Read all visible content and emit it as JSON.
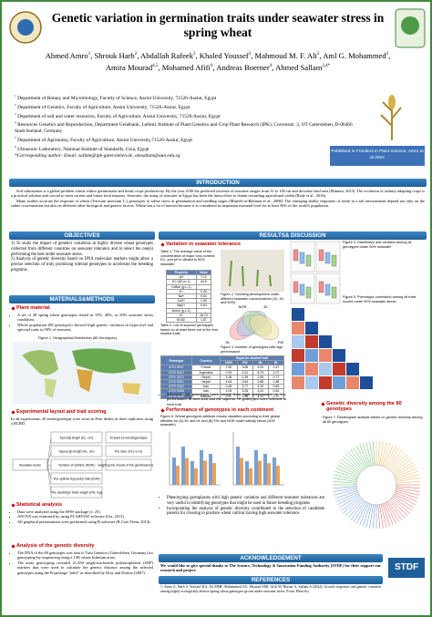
{
  "header": {
    "title": "Genetic variation in germination traits under seawater stress in spring wheat",
    "authors": [
      {
        "name": "Ahmed Amro",
        "sup": "1"
      },
      {
        "name": "Shrouk Harb",
        "sup": "2"
      },
      {
        "name": "Abdallah Rafeek",
        "sup": "2"
      },
      {
        "name": "Khaled Youssef",
        "sup": "3"
      },
      {
        "name": "Mahmoud M. F. Ali",
        "sup": "2"
      },
      {
        "name": "Aml G. Mohammed",
        "sup": "2"
      },
      {
        "name": "Amira Mourad",
        "sup": "4,5"
      },
      {
        "name": "Mohamed Afifi",
        "sup": "6"
      },
      {
        "name": "Andreas Boerner",
        "sup": "4"
      },
      {
        "name": "Ahmed Sallam",
        "sup": "2,4*"
      }
    ],
    "affiliations": [
      {
        "sup": "1",
        "text": "Department of Botany and Microbiology, Faculty of Science, Assiut University, 71526-Assiut, Egypt"
      },
      {
        "sup": "2",
        "text": "Department of Genetics, Faculty of Agriculture, Assiut University, 71526-Assiut, Egypt"
      },
      {
        "sup": "3",
        "text": "Department of soil and water resources, Faculty of Agriculture, Assiut University, 71526-Assiut, Egypt"
      },
      {
        "sup": "4",
        "text": "Resources Genetics and Reproduction, Department Genebank, Leibniz Institute of Plant Genetics and Crop Plant Research (IPK), Corrensstr. 3, OT Gatersleben, D-06466 Stadt Seeland, Germany"
      },
      {
        "sup": "5",
        "text": "Department of Agronomy, Faculty of Agriculture, Assiut University,71526-Assiut, Egypt"
      },
      {
        "sup": "6",
        "text": "Ultrasonic Laboratory, National Institute of Standards, Giza, Egypt"
      }
    ],
    "corresponding": "*Corresponding author: Email: sallam@ipk-gatersleben.de, amsallam@aun.edu.eg",
    "publication": "Published in Frontiers in Plant Science, Amro et al 2022"
  },
  "introduction": {
    "heading": "INTRODUCTION",
    "paragraphs": [
      "Soil salinization is a global problem which reduce germination and limits crops productivity. By the year 2100 the predicted increase of seawater ranges from 31 to 100 cm and decrease land area (Mimura, 2013). The evolution of salinity-adapting crops is a practical solution and crucial to meet current and future food requests. Seawater, the using of seawater in Egypt has been the latest effort to obtain rewarding agricultural yields (Rady et al., 2016).",
      "Many studies accurate the response of wheat (Triticum aestivum L.) genotypes to saline stress at germination and seedling stages (Mujeeb-ur-Rahman et al., 2008). The emerging ability responses of seeds in a salt environment depend not only on the saline concentration but also on different other biological and genetic factors. Wheat has a lot of interest because it is considered an important essential food for at least 36% of the world's population."
    ]
  },
  "objectives": {
    "heading": "OBJECTIVES",
    "items": [
      "1) To study the impact of genetics variations in highly diverse wheat genotypes collected from different countries on seawater tolerance and to select the one(s) performing the best under seawater stress.",
      "2) Analysis of genetic diversity based on DNA molecular markers might allow a precise selection of truly promising tolerant genotypes to accelerate the breeding programs."
    ]
  },
  "methods": {
    "heading": "MATERIALS&METHODS",
    "plant_material": {
      "heading": "Plant material",
      "items": [
        "A set of 48 spring wheat genotypes tested in 10%, 40%, or 50% seawater stress conditions.",
        "Whole population (80 genotypes) showed high genetic variation in hypocotyl and epicotyl traits in 50% of seawater."
      ],
      "figure_caption": "Figure 1. Geographical Distribution (80 Genotypes)"
    },
    "layout": {
      "heading": "Experimental layout and trait scoring",
      "text": "In all experiments, 20 seeds/genotype were sown in Petri dishes in three replicates using a RCBD.",
      "diagram": [
        "Seawater levels",
        "Epicotyl length (EL, cm)",
        "Hypocotyl length (HL, cm)",
        "Number of radicles (NOR)",
        "The optimal Hypocotyl ratio (EHR)",
        "The seedling's fresh weight (FW, mg)",
        "At least 16 seeds/genotype",
        "The ratio of EL to HL",
        "weighing the shoots of the germinated seeds"
      ]
    },
    "statistics": {
      "heading": "Statistical analysis",
      "items": [
        "Data were analyzed using the SPSS package (v. 25).",
        "ANOVA was estimated by using PLABSTAT software (Utz, 2011).",
        "All graphical presentations were performed using R software (R Core Team, 2014)."
      ]
    },
    "diversity": {
      "heading": "Analysis of the genetic diversity",
      "items": [
        "The DNA of the 80 genotypes was sent to Trait Genetics (Gatersleben, Germany) for genotyping-by-sequencing using a 15K wheat Infinium array.",
        "The array genotyping revealed 21,450 single-nucleotide polymorphisms (SNP) markers that were used to calculate the genetic distance among the selected genotypes using the R-package \"ade4\" as described by Dray and Dufour (2007)."
      ]
    }
  },
  "results": {
    "heading": "RESULTS& DISCUSSION",
    "variation_heading": "Variation in seawater tolerance",
    "table1": {
      "caption": "Table 1. The average value of the concentration of major ions content, EC, and pH in diluted to 50% seawater",
      "columns": [
        "Property",
        "Value"
      ],
      "rows": [
        [
          "pH",
          "7.12"
        ],
        [
          "EC (dS.m-1)",
          "44.5"
        ],
        [
          "Cation (g.L-1)",
          ""
        ],
        [
          "K+",
          "0.26"
        ],
        [
          "Na+",
          "9.04"
        ],
        [
          "Ca2+",
          "1.59"
        ],
        [
          "Mg2+",
          "0.54"
        ],
        [
          "Anion (g.L-1)",
          ""
        ],
        [
          "Cl-",
          "18.73"
        ],
        [
          "SO42-",
          "1.67"
        ]
      ]
    },
    "figure2_caption": "Figure 2. Seedling development under different seawater concentrations (10, 40, and 50%)",
    "figure3_caption": "Figure 3. Distribution and variation among all genotypes under 50% seawater",
    "figure4_caption": "Figure 4. Number of genotypes with high performance",
    "venn_labels": [
      "HL",
      "NOR",
      "EL",
      "FW"
    ],
    "figure5_caption": "Figure 5. Phenotypic correlation among all traits scored under 50% seawater stress",
    "table2": {
      "caption": "Table 2. List of superior genotypes based on at least three out of the four studied traits.",
      "columns": [
        "Genotype",
        "Country",
        "Superior studied trait"
      ],
      "traits": [
        "NOR",
        "FW",
        "HL",
        "EL"
      ],
      "rows": [
        [
          "ATRI 5547",
          "France",
          "1.50",
          "3.65",
          "4.00",
          "1.47"
        ],
        [
          "ATRI 5310",
          "Argentina",
          "0.92",
          "3.31",
          "8.79",
          "2.07"
        ],
        [
          "ATRI 3670",
          "Nepal",
          "3.35",
          "1.39",
          "2.55",
          "0.77"
        ],
        [
          "ATRI 5562",
          "Nepal",
          "4.64",
          "3.64",
          "2.88",
          "1.86"
        ],
        [
          "ATRI 5364",
          "Iran",
          "0.45",
          "3.77",
          "4.30",
          "0.69"
        ],
        [
          "ATRI 5368",
          "Iran",
          "1.09",
          "3.25",
          "4.20",
          "0.81"
        ],
        [
          "ATRI 5502",
          "Sweden",
          "0.67",
          "1.40",
          "4.20",
          "1.27"
        ]
      ]
    },
    "selection": "Selection: All genotypes were sorted from high performance to low performance in each trait and the superior 10 genotypes were selected in each trait",
    "continent_heading": "Performance of genotypes in each continent",
    "figure6_caption": "Figure 6. Wheat genotypes attribute means classified according to their global affinities for (A) EL and HL and (B) FW and NOR under salinity stress (50% seawater).",
    "diversity_heading": "Genetic diversity among the 80 genotypes",
    "figure7_caption": "Figure 7. Dendrogram analysis based on genetic diversity among all 80 genotypes",
    "conclusions": [
      "Phenotyping germplasms with high genetic variation and different seawater tolerances are very useful in identifying genotypes that might be used in future breeding programs",
      "Incorporating the analysis of genetic diversity contributed to the selection of candidate parents for crossing to produce wheat cultivar having high seawater tolerance."
    ]
  },
  "acknowledgement": {
    "heading": "ACKNOWLEDGEMENT",
    "text": "We would like to give special thanks to The Science, Technology & Innovation Funding Authority (STDF) for their support our research and project."
  },
  "references": {
    "heading": "REFERENCES",
    "items": [
      "1. Amro A, Harb S, Youssef KA, Ali MMF, Mohammed AG, Mourad AMI, Afifi M, Börner A, Sallam A (2022). Growth responses and genetic variation among highly ecologically diverse spring wheat genotypes grown under seawater stress. Front. Plant Sci."
    ]
  },
  "logo": "STDF"
}
